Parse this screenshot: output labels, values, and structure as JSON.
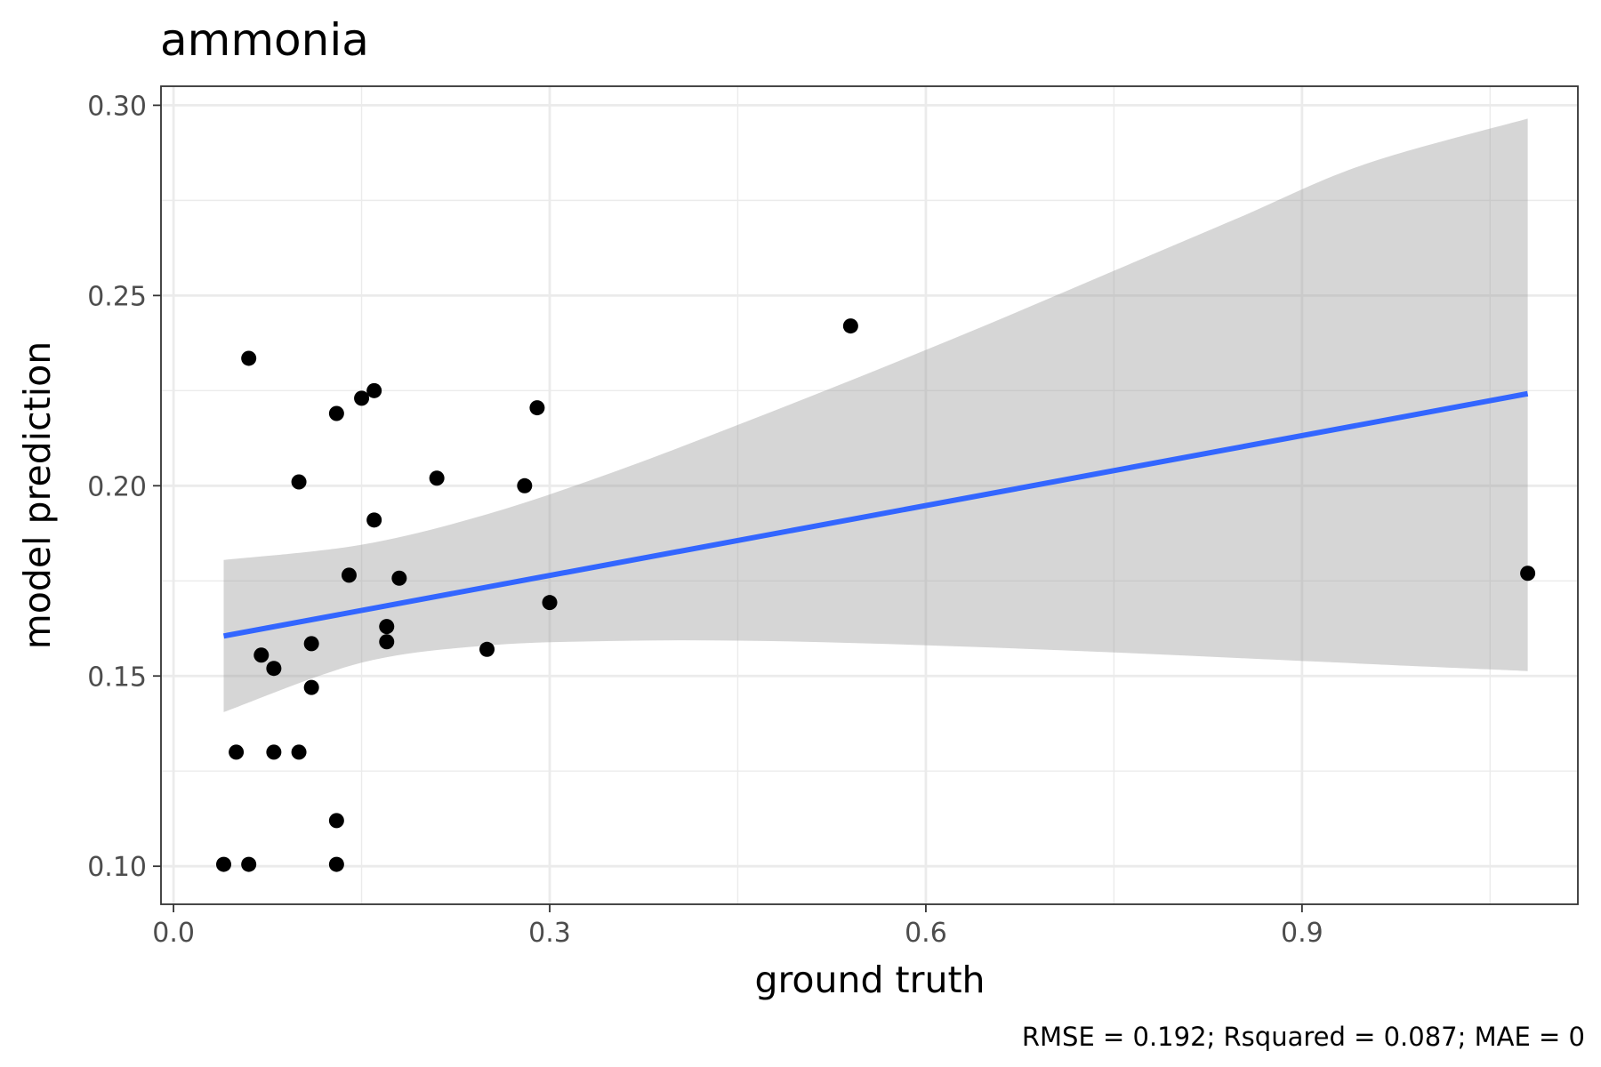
{
  "chart_data": {
    "type": "scatter",
    "title": "ammonia",
    "xlabel": "ground truth",
    "ylabel": "model prediction",
    "caption": "RMSE = 0.192; Rsquared = 0.087; MAE = 0",
    "xlim": [
      -0.01,
      1.12
    ],
    "ylim": [
      0.09,
      0.305
    ],
    "x_ticks": [
      0.0,
      0.3,
      0.6,
      0.9
    ],
    "x_tick_labels": [
      "0.0",
      "0.3",
      "0.6",
      "0.9"
    ],
    "y_ticks": [
      0.1,
      0.15,
      0.2,
      0.25,
      0.3
    ],
    "y_tick_labels": [
      "0.10",
      "0.15",
      "0.20",
      "0.25",
      "0.30"
    ],
    "grid": true,
    "points": [
      {
        "x": 0.04,
        "y": 0.1005
      },
      {
        "x": 0.06,
        "y": 0.1005
      },
      {
        "x": 0.13,
        "y": 0.1005
      },
      {
        "x": 0.13,
        "y": 0.112
      },
      {
        "x": 0.05,
        "y": 0.13
      },
      {
        "x": 0.08,
        "y": 0.13
      },
      {
        "x": 0.1,
        "y": 0.13
      },
      {
        "x": 0.11,
        "y": 0.147
      },
      {
        "x": 0.08,
        "y": 0.152
      },
      {
        "x": 0.07,
        "y": 0.1555
      },
      {
        "x": 0.11,
        "y": 0.1585
      },
      {
        "x": 0.17,
        "y": 0.159
      },
      {
        "x": 0.17,
        "y": 0.163
      },
      {
        "x": 0.25,
        "y": 0.157
      },
      {
        "x": 0.14,
        "y": 0.1765
      },
      {
        "x": 0.18,
        "y": 0.1757
      },
      {
        "x": 0.3,
        "y": 0.1693
      },
      {
        "x": 0.16,
        "y": 0.191
      },
      {
        "x": 0.1,
        "y": 0.201
      },
      {
        "x": 0.21,
        "y": 0.202
      },
      {
        "x": 0.28,
        "y": 0.2
      },
      {
        "x": 0.13,
        "y": 0.219
      },
      {
        "x": 0.15,
        "y": 0.223
      },
      {
        "x": 0.16,
        "y": 0.225
      },
      {
        "x": 0.29,
        "y": 0.2205
      },
      {
        "x": 0.06,
        "y": 0.2335
      },
      {
        "x": 0.54,
        "y": 0.242
      },
      {
        "x": 1.08,
        "y": 0.177
      }
    ],
    "fit_line": {
      "x": [
        0.04,
        1.08
      ],
      "y": [
        0.1605,
        0.2242
      ]
    },
    "confidence_band": {
      "x": [
        0.04,
        0.15,
        0.25,
        0.35,
        0.45,
        0.55,
        0.65,
        0.75,
        0.85,
        0.95,
        1.08
      ],
      "upper": [
        0.1805,
        0.1845,
        0.1925,
        0.2035,
        0.216,
        0.229,
        0.2425,
        0.2565,
        0.2705,
        0.2845,
        0.2965
      ],
      "lower": [
        0.1405,
        0.1535,
        0.158,
        0.1592,
        0.1593,
        0.1586,
        0.1575,
        0.1562,
        0.1547,
        0.1532,
        0.1513
      ]
    },
    "colors": {
      "points": "#000000",
      "fit_line": "#3366ff",
      "band": "#999999",
      "grid": "#ebebeb",
      "panel_border": "#333333",
      "tick_label": "#4d4d4d"
    }
  }
}
